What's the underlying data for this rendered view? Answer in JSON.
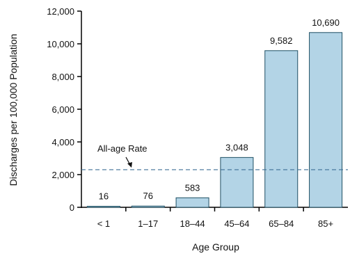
{
  "chart_data": {
    "type": "bar",
    "categories": [
      "< 1",
      "1–17",
      "18–44",
      "45–64",
      "65–84",
      "85+"
    ],
    "values": [
      16,
      76,
      583,
      3048,
      9582,
      10690
    ],
    "value_labels": [
      "16",
      "76",
      "583",
      "3,048",
      "9,582",
      "10,690"
    ],
    "xlabel": "Age Group",
    "ylabel": "Discharges per 100,000 Population",
    "ylim": [
      0,
      12000
    ],
    "yticks": [
      0,
      2000,
      4000,
      6000,
      8000,
      10000,
      12000
    ],
    "ytick_labels": [
      "0",
      "2,000",
      "4,000",
      "6,000",
      "8,000",
      "10,000",
      "12,000"
    ],
    "reference_line": {
      "label": "All-age Rate",
      "value": 2300
    },
    "grid": false,
    "colors": {
      "bar_fill": "#b3d4e6",
      "bar_stroke": "#1e4f63",
      "reference_line": "#3d6f96",
      "axis": "#000000"
    }
  }
}
